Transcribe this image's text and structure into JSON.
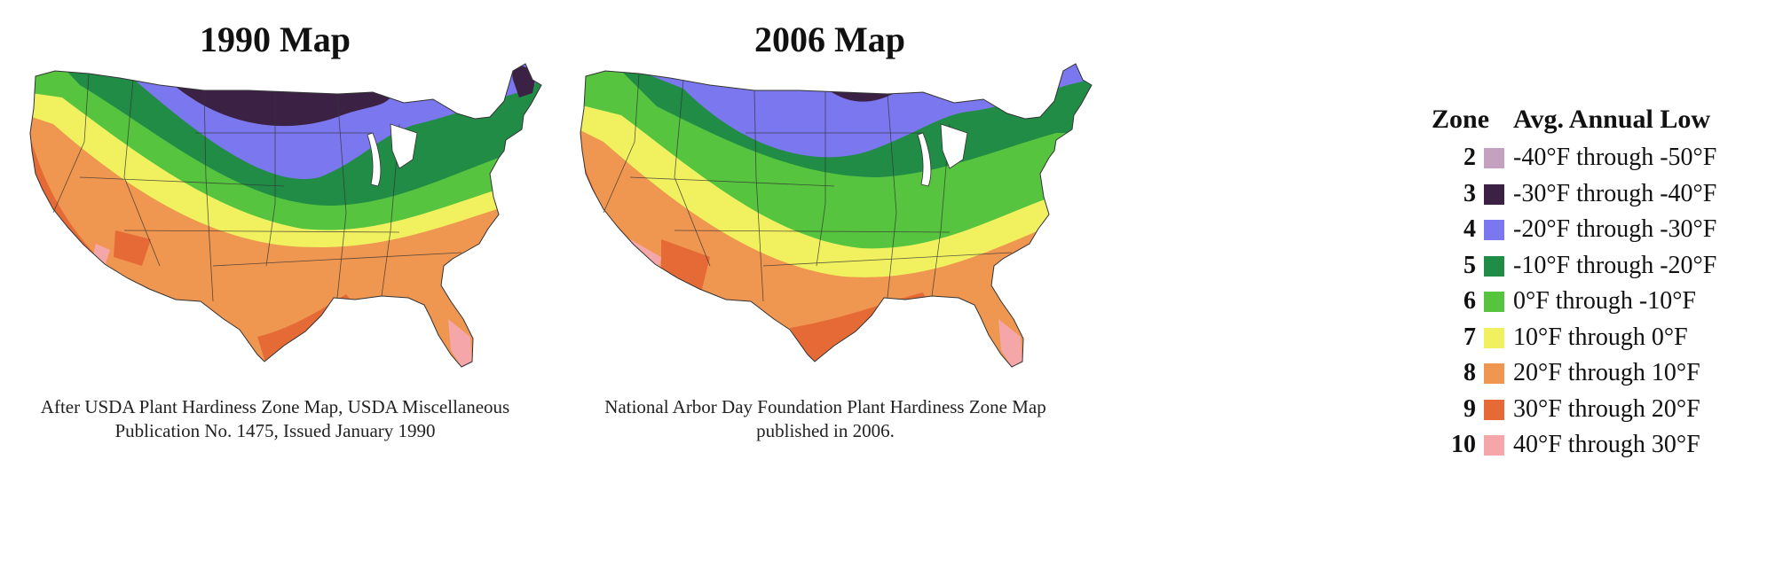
{
  "maps": [
    {
      "title": "1990 Map",
      "caption": [
        "After USDA Plant Hardiness Zone Map, USDA Miscellaneous",
        "Publication No. 1475, Issued January 1990"
      ]
    },
    {
      "title": "2006 Map",
      "caption": [
        "National Arbor Day Foundation Plant Hardiness Zone Map",
        "published in 2006."
      ]
    }
  ],
  "legend": {
    "zone_header": "Zone",
    "range_header": "Avg. Annual Low",
    "items": [
      {
        "zone": "2",
        "range": "-40°F through -50°F",
        "color": "#c3a1bf"
      },
      {
        "zone": "3",
        "range": "-30°F through -40°F",
        "color": "#3b2245"
      },
      {
        "zone": "4",
        "range": "-20°F through -30°F",
        "color": "#7b77ee"
      },
      {
        "zone": "5",
        "range": "-10°F through -20°F",
        "color": "#218c46"
      },
      {
        "zone": "6",
        "range": "0°F through -10°F",
        "color": "#56c43f"
      },
      {
        "zone": "7",
        "range": "10°F through 0°F",
        "color": "#f1f160"
      },
      {
        "zone": "8",
        "range": "20°F through 10°F",
        "color": "#ef9650"
      },
      {
        "zone": "9",
        "range": "30°F through 20°F",
        "color": "#e66a36"
      },
      {
        "zone": "10",
        "range": "40°F through 30°F",
        "color": "#f4a6a8"
      }
    ]
  }
}
